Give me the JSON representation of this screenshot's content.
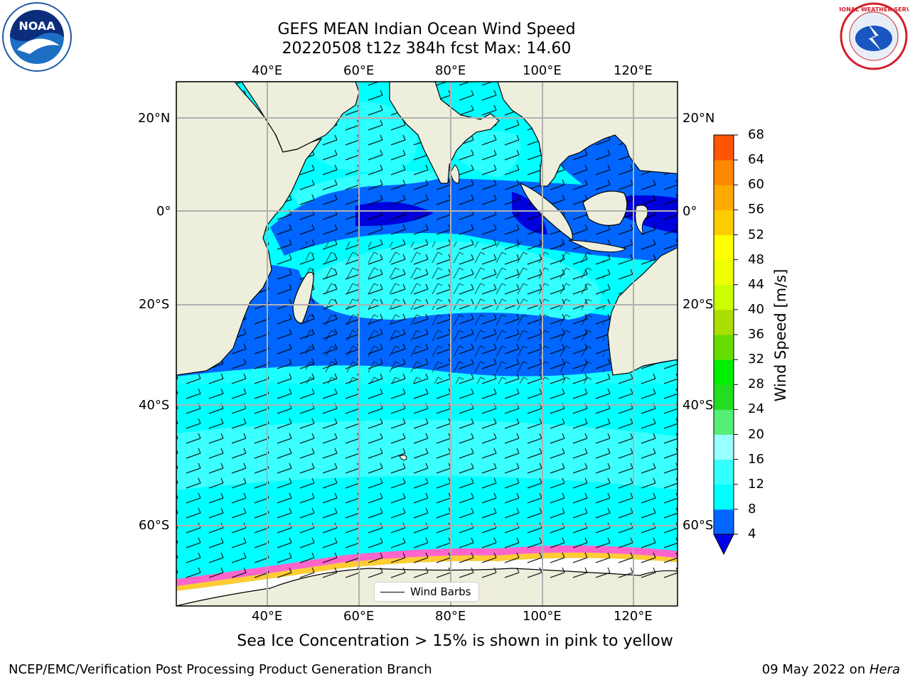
{
  "title": {
    "line1": "GEFS MEAN Indian Ocean Wind Speed",
    "line2": "20220508 t12z 384h fcst   Max: 14.60"
  },
  "axes": {
    "lon_labels": [
      "40°E",
      "60°E",
      "80°E",
      "100°E",
      "120°E"
    ],
    "lat_labels": [
      "20°N",
      "0°",
      "20°S",
      "40°S",
      "60°S"
    ]
  },
  "colorbar": {
    "title": "Wind Speed [m/s]",
    "ticks": [
      "4",
      "8",
      "12",
      "16",
      "20",
      "24",
      "28",
      "32",
      "36",
      "40",
      "44",
      "48",
      "52",
      "56",
      "60",
      "64",
      "68"
    ],
    "colors": [
      "#0066ff",
      "#00ffff",
      "#33ffff",
      "#99ffff",
      "#55ee77",
      "#22dd22",
      "#00ee00",
      "#66dd00",
      "#aadd00",
      "#ccff00",
      "#eeff00",
      "#ffff00",
      "#ffcc00",
      "#ffaa00",
      "#ff8800",
      "#ff5500",
      "#ff2200",
      "#ff0000"
    ],
    "under_color": "#0000ee"
  },
  "legend": {
    "label": "Wind Barbs"
  },
  "note": "Sea Ice Concentration > 15% is shown in pink to yellow",
  "footer": {
    "left": "NCEP/EMC/Verification Post Processing Product Generation Branch",
    "right_date": "09 May 2022 on ",
    "right_host": "Hera"
  },
  "logos": {
    "left": "NOAA",
    "right": "NATIONAL WEATHER SERVICE"
  }
}
